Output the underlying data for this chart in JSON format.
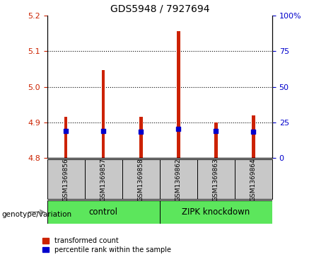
{
  "title": "GDS5948 / 7927694",
  "samples": [
    "GSM1369856",
    "GSM1369857",
    "GSM1369858",
    "GSM1369862",
    "GSM1369863",
    "GSM1369864"
  ],
  "red_values": [
    4.915,
    5.047,
    4.915,
    5.155,
    4.9,
    4.92
  ],
  "blue_values": [
    4.875,
    4.875,
    4.873,
    4.882,
    4.875,
    4.873
  ],
  "bar_bottom": 4.8,
  "ylim_left": [
    4.8,
    5.2
  ],
  "ylim_right": [
    0,
    100
  ],
  "yticks_left": [
    4.8,
    4.9,
    5.0,
    5.1,
    5.2
  ],
  "yticks_right": [
    0,
    25,
    50,
    75,
    100
  ],
  "ytick_labels_right": [
    "0",
    "25",
    "50",
    "75",
    "100%"
  ],
  "dotted_lines": [
    4.9,
    5.0,
    5.1
  ],
  "group_box_color": "#c8c8c8",
  "green_color": "#5ce65c",
  "red_color": "#cc2200",
  "blue_color": "#0000cc",
  "legend_red": "transformed count",
  "legend_blue": "percentile rank within the sample",
  "genotype_label": "genotype/variation",
  "bar_width": 0.08,
  "left_axis_color": "#cc2200",
  "right_axis_color": "#0000cc",
  "control_label": "control",
  "zipk_label": "ZIPK knockdown"
}
